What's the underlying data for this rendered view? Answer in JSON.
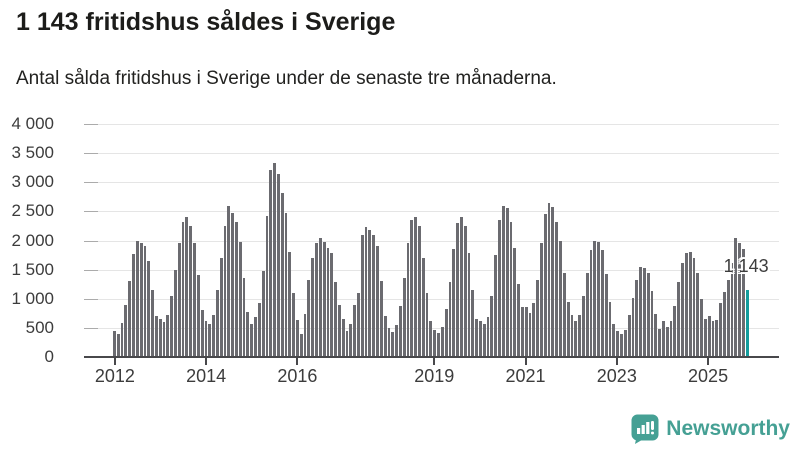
{
  "header": {
    "title": "1 143 fritidshus såldes i Sverige",
    "subtitle": "Antal sålda fritidshus i Sverige under de senaste tre månaderna."
  },
  "chart_data": {
    "type": "bar",
    "title": "1 143 fritidshus såldes i Sverige",
    "subtitle": "Antal sålda fritidshus i Sverige under de senaste tre månaderna.",
    "frequency": "monthly",
    "start_year": 2012,
    "ylim": [
      0,
      4000
    ],
    "grid": true,
    "yticks": [
      "4 000",
      "3 500",
      "3 000",
      "2 500",
      "2 000",
      "1 500",
      "1 000",
      "500",
      "0"
    ],
    "ytick_values": [
      4000,
      3500,
      3000,
      2500,
      2000,
      1500,
      1000,
      500,
      0
    ],
    "xticks": [
      {
        "label": "2012",
        "month_index": 0
      },
      {
        "label": "2014",
        "month_index": 24
      },
      {
        "label": "2016",
        "month_index": 48
      },
      {
        "label": "2019",
        "month_index": 84
      },
      {
        "label": "2021",
        "month_index": 108
      },
      {
        "label": "2023",
        "month_index": 132
      },
      {
        "label": "2025",
        "month_index": 156
      }
    ],
    "values": [
      440,
      400,
      590,
      900,
      1300,
      1760,
      2000,
      1950,
      1900,
      1650,
      1150,
      700,
      650,
      600,
      720,
      1050,
      1500,
      1950,
      2320,
      2400,
      2250,
      1950,
      1400,
      800,
      620,
      560,
      720,
      1150,
      1700,
      2250,
      2600,
      2480,
      2320,
      1980,
      1350,
      780,
      560,
      680,
      920,
      1480,
      2420,
      3210,
      3325,
      3140,
      2820,
      2470,
      1800,
      1095,
      640,
      395,
      730,
      1320,
      1700,
      1950,
      2040,
      1980,
      1870,
      1780,
      1280,
      900,
      650,
      450,
      560,
      900,
      1100,
      2100,
      2230,
      2180,
      2100,
      1900,
      1300,
      700,
      500,
      430,
      550,
      870,
      1350,
      1950,
      2350,
      2400,
      2250,
      1700,
      1100,
      620,
      460,
      410,
      520,
      820,
      1280,
      1850,
      2300,
      2400,
      2250,
      1780,
      1150,
      660,
      620,
      560,
      680,
      1050,
      1750,
      2350,
      2600,
      2560,
      2320,
      1870,
      1260,
      860,
      860,
      760,
      920,
      1320,
      1950,
      2450,
      2650,
      2580,
      2320,
      2000,
      1450,
      950,
      720,
      610,
      720,
      1050,
      1450,
      1830,
      2000,
      1970,
      1830,
      1430,
      950,
      560,
      450,
      390,
      460,
      720,
      1020,
      1320,
      1540,
      1530,
      1440,
      1140,
      740,
      480,
      610,
      510,
      620,
      870,
      1280,
      1620,
      1790,
      1810,
      1700,
      1440,
      1000,
      660,
      700,
      620,
      640,
      920,
      1120,
      1320,
      1620,
      2050,
      1950,
      1850,
      1143
    ],
    "highlight": {
      "index": 166,
      "value": 1143,
      "label": "1 143"
    },
    "bar_color": "#6b6b70",
    "highlight_color": "#149d9d",
    "legend": null
  },
  "footer": {
    "brand": "Newsworthy",
    "logo_icon": "bar-chart-speech-bubble-icon",
    "brand_color": "#45a094"
  }
}
